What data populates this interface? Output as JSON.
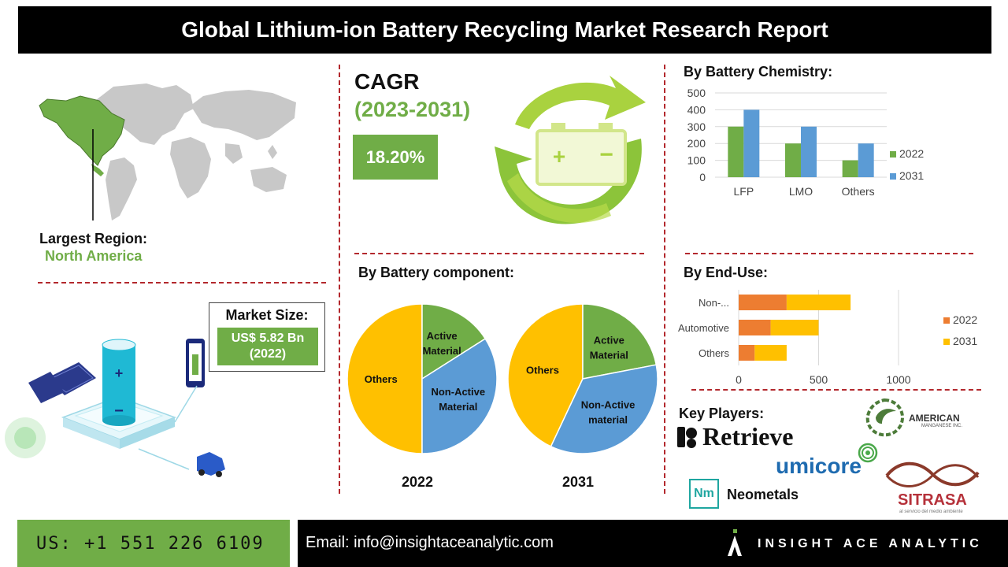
{
  "title": "Global Lithium-ion Battery Recycling Market Research Report",
  "region": {
    "label": "Largest Region:",
    "value": "North America"
  },
  "cagr": {
    "label": "CAGR",
    "period": "(2023-2031)",
    "value": "18.20%"
  },
  "market_size": {
    "label": "Market Size:",
    "value_line1": "US$ 5.82 Bn",
    "value_line2": "(2022)"
  },
  "battery_chemistry": {
    "heading": "By Battery Chemistry:"
  },
  "battery_component": {
    "heading": "By Battery component:"
  },
  "end_use": {
    "heading": "By End-Use:"
  },
  "key_players": {
    "heading": "Key Players:",
    "retrieve": "Retrieve",
    "american_line1": "AMERICAN",
    "american_line2": "MANGANESE INC.",
    "umicore": "umicore",
    "neometals_badge": "Nm",
    "neometals": "Neometals",
    "sitrasa": "SITRASA",
    "sitrasa_tag": "al servicio del medio ambiente"
  },
  "footer": {
    "phone": "US: +1 551 226 6109",
    "email": "Email: info@insightaceanalytic.com",
    "brand": "INSIGHT ACE ANALYTIC"
  },
  "colors": {
    "green": "#70ad47",
    "blue": "#5b9bd5",
    "orange": "#ed7d31",
    "yellow": "#ffc000",
    "dashed_red": "#b3282d"
  },
  "chart_data": [
    {
      "type": "bar",
      "categories": [
        "LFP",
        "LMO",
        "Others"
      ],
      "series": [
        {
          "name": "2022",
          "values": [
            300,
            200,
            100
          ],
          "color": "#70ad47"
        },
        {
          "name": "2031",
          "values": [
            400,
            300,
            200
          ],
          "color": "#5b9bd5"
        }
      ],
      "ylim": [
        0,
        500
      ],
      "yticks": [
        0,
        100,
        200,
        300,
        400,
        500
      ],
      "legend": "right",
      "grid": true
    },
    {
      "type": "pie",
      "label": "2022",
      "slices": [
        {
          "name": "Others",
          "value": 50,
          "color": "#ffc000"
        },
        {
          "name": "Active Material",
          "value": 16,
          "color": "#70ad47"
        },
        {
          "name": "Non-Active Material",
          "value": 34,
          "color": "#5b9bd5"
        }
      ]
    },
    {
      "type": "pie",
      "label": "2031",
      "slices": [
        {
          "name": "Others",
          "value": 43,
          "color": "#ffc000"
        },
        {
          "name": "Active Material",
          "value": 22,
          "color": "#70ad47"
        },
        {
          "name": "Non-Active material",
          "value": 35,
          "color": "#5b9bd5"
        }
      ]
    },
    {
      "type": "bar",
      "orientation": "horizontal",
      "stacked": true,
      "categories": [
        "Non-...",
        "Automotive",
        "Others"
      ],
      "series": [
        {
          "name": "2022",
          "values": [
            300,
            200,
            100
          ],
          "color": "#ed7d31"
        },
        {
          "name": "2031",
          "values": [
            400,
            300,
            200
          ],
          "color": "#ffc000"
        }
      ],
      "xlim": [
        0,
        1000
      ],
      "xticks": [
        0,
        500,
        1000
      ],
      "legend": "right",
      "grid": true
    }
  ]
}
